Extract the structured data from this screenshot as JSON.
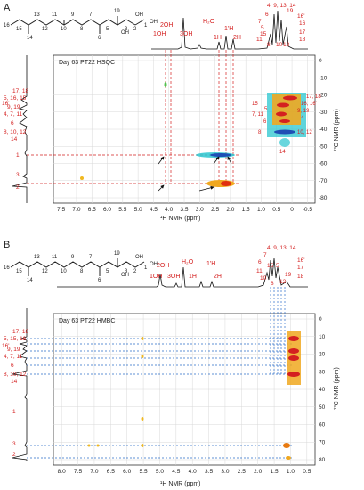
{
  "panels": [
    {
      "letter": "A",
      "experiment_label": "Day 63 PT22 HSQC",
      "x_axis_title": "¹H NMR (ppm)",
      "y_axis_title": "¹³C NMR (ppm)",
      "x_ticks": [
        "7.5",
        "7.0",
        "6.5",
        "6.0",
        "5.5",
        "5.0",
        "4.5",
        "4.0",
        "3.5",
        "3.0",
        "2.5",
        "2.0",
        "1.5",
        "1.0",
        "0.5",
        "0",
        "-0.5"
      ],
      "y_ticks": [
        "0",
        "-10",
        "-20",
        "-30",
        "-40",
        "-50",
        "-60",
        "-70",
        "-80"
      ],
      "proton_top_labels": [
        "2OH",
        "1OH",
        "3OH",
        "H₂O",
        "1H",
        "1'H",
        "2H"
      ],
      "proton_cluster_labels": [
        "4, 9, 13, 14",
        "6",
        "16'",
        "7",
        "5",
        "15",
        "8",
        "11",
        "10",
        "17",
        "12",
        "18",
        "16",
        "19"
      ],
      "carbon_left_labels": [
        "16'",
        "17, 18",
        "5, 16, 15",
        "9, 19",
        "4, 7, 11",
        "6",
        "8, 10, 12",
        "14",
        "1",
        "3",
        "2"
      ],
      "crosspeak_labels": [
        "17, 18",
        "16, 16'",
        "15",
        "5",
        "9, 19",
        "7, 11",
        "4",
        "6",
        "8",
        "10, 12",
        "14"
      ]
    },
    {
      "letter": "B",
      "experiment_label": "Day 63 PT22 HMBC",
      "x_axis_title": "¹H NMR (ppm)",
      "y_axis_title": "¹³C NMR (ppm)",
      "x_ticks": [
        "8.0",
        "7.5",
        "7.0",
        "6.5",
        "6.0",
        "5.5",
        "5.0",
        "4.5",
        "4.0",
        "3.5",
        "3.0",
        "2.5",
        "2.0",
        "1.5",
        "1.0",
        "0.5"
      ],
      "y_ticks": [
        "0",
        "10",
        "20",
        "30",
        "40",
        "50",
        "60",
        "70",
        "80"
      ],
      "proton_top_labels": [
        "2OH",
        "1OH",
        "3OH",
        "H₂O",
        "1H",
        "1'H",
        "2H"
      ],
      "proton_cluster_labels": [
        "4, 9, 13, 14",
        "7",
        "6",
        "16'",
        "11",
        "15",
        "10",
        "8",
        "12",
        "17",
        "18",
        "19",
        "5"
      ],
      "carbon_left_labels": [
        "16'",
        "17, 18",
        "5, 15, 16",
        "9, 19",
        "4, 7, 11",
        "6",
        "8, 10, 12",
        "14",
        "1",
        "3",
        "2"
      ]
    }
  ],
  "molecule": {
    "atom_numbers": [
      "16",
      "15",
      "14",
      "13",
      "12",
      "11",
      "10",
      "9",
      "8",
      "7",
      "6",
      "5",
      "4",
      "3",
      "2",
      "1",
      "18",
      "17",
      "19"
    ],
    "groups": [
      "OH",
      "OH",
      "OH"
    ]
  }
}
